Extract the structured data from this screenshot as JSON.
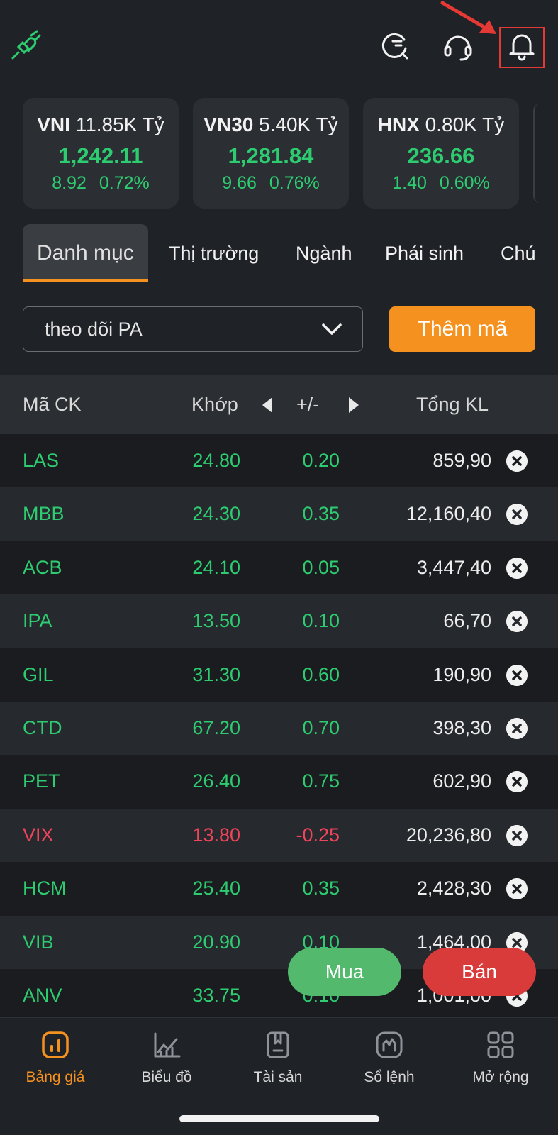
{
  "indices": [
    {
      "name": "VNI",
      "turnover": "11.85K Tỷ",
      "value": "1,242.11",
      "change": "8.92",
      "percent": "0.72%"
    },
    {
      "name": "VN30",
      "turnover": "5.40K Tỷ",
      "value": "1,281.84",
      "change": "9.66",
      "percent": "0.76%"
    },
    {
      "name": "HNX",
      "turnover": "0.80K Tỷ",
      "value": "236.66",
      "change": "1.40",
      "percent": "0.60%"
    }
  ],
  "tabs": [
    "Danh mục",
    "Thị trường",
    "Ngành",
    "Phái sinh",
    "Chú"
  ],
  "watchlist": {
    "selected": "theo dõi PA",
    "add_label": "Thêm mã"
  },
  "table": {
    "headers": {
      "symbol": "Mã CK",
      "price": "Khớp",
      "change": "+/-",
      "volume": "Tổng KL"
    },
    "rows": [
      {
        "symbol": "LAS",
        "price": "24.80",
        "change": "0.20",
        "volume": "859,90",
        "trend": "up"
      },
      {
        "symbol": "MBB",
        "price": "24.30",
        "change": "0.35",
        "volume": "12,160,40",
        "trend": "up"
      },
      {
        "symbol": "ACB",
        "price": "24.10",
        "change": "0.05",
        "volume": "3,447,40",
        "trend": "up"
      },
      {
        "symbol": "IPA",
        "price": "13.50",
        "change": "0.10",
        "volume": "66,70",
        "trend": "up"
      },
      {
        "symbol": "GIL",
        "price": "31.30",
        "change": "0.60",
        "volume": "190,90",
        "trend": "up"
      },
      {
        "symbol": "CTD",
        "price": "67.20",
        "change": "0.70",
        "volume": "398,30",
        "trend": "up"
      },
      {
        "symbol": "PET",
        "price": "26.40",
        "change": "0.75",
        "volume": "602,90",
        "trend": "up"
      },
      {
        "symbol": "VIX",
        "price": "13.80",
        "change": "-0.25",
        "volume": "20,236,80",
        "trend": "down"
      },
      {
        "symbol": "HCM",
        "price": "25.40",
        "change": "0.35",
        "volume": "2,428,30",
        "trend": "up"
      },
      {
        "symbol": "VIB",
        "price": "20.90",
        "change": "0.10",
        "volume": "1,464,00",
        "trend": "up"
      },
      {
        "symbol": "ANV",
        "price": "33.75",
        "change": "0.10",
        "volume": "1,001,00",
        "trend": "up"
      }
    ]
  },
  "actions": {
    "buy": "Mua",
    "sell": "Bán"
  },
  "nav": [
    {
      "label": "Bảng giá",
      "icon": "price-board-icon"
    },
    {
      "label": "Biểu đồ",
      "icon": "chart-icon"
    },
    {
      "label": "Tài sản",
      "icon": "assets-icon"
    },
    {
      "label": "Sổ lệnh",
      "icon": "order-book-icon"
    },
    {
      "label": "Mở rộng",
      "icon": "grid-icon"
    }
  ],
  "colors": {
    "up": "#2ecc71",
    "down": "#f0445a",
    "accent": "#f5911e",
    "buy": "#52b96d",
    "sell": "#d93b3b"
  }
}
